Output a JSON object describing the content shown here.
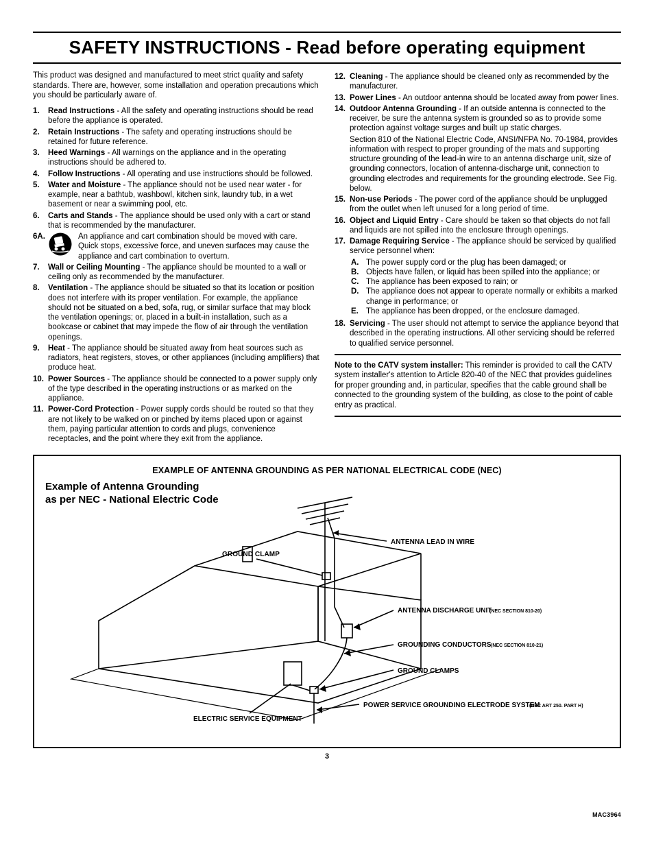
{
  "title": "SAFETY INSTRUCTIONS - Read before operating equipment",
  "intro": "This product was designed and manufactured to meet strict quality and safety standards. There are, however, some installation and operation precautions which you should be particularly aware of.",
  "left_items": [
    {
      "n": "1.",
      "label": "Read Instructions",
      "text": " - All the safety and operating instructions should be read before the appliance is operated."
    },
    {
      "n": "2.",
      "label": "Retain Instructions",
      "text": " - The safety and operating instructions should be retained for future reference."
    },
    {
      "n": "3.",
      "label": "Heed Warnings",
      "text": " - All warnings on the appliance and in the operating instructions should be adhered to."
    },
    {
      "n": "4.",
      "label": "Follow Instructions",
      "text": " - All operating and use instructions should be followed."
    },
    {
      "n": "5.",
      "label": "Water and Moisture",
      "text": " - The appliance should not be used near water - for example, near a bathtub, washbowl, kitchen sink, laundry tub, in a wet basement or near a swimming pool, etc."
    },
    {
      "n": "6.",
      "label": "Carts and Stands",
      "text": " - The appliance should be used only with a cart or stand that is recommended by the manufacturer."
    }
  ],
  "item_6a": {
    "n": "6A.",
    "text": "An appliance and cart combination should be moved with care. Quick stops, excessive force, and uneven surfaces may cause the appliance and cart combination to overturn."
  },
  "left_items_b": [
    {
      "n": "7.",
      "label": "Wall or Ceiling Mounting",
      "text": " - The appliance should be mounted to a wall or ceiling only as recommended by the manufacturer."
    },
    {
      "n": "8.",
      "label": "Ventilation",
      "text": " - The appliance should be situated so that its location or position does not interfere with its proper ventilation. For example, the appliance should not be situated on a bed, sofa, rug, or similar surface that may block the ventilation openings; or, placed in a built-in installation, such as a bookcase or cabinet that may impede the flow of air through the ventilation openings."
    },
    {
      "n": "9.",
      "label": "Heat",
      "text": " - The appliance should be situated away from heat sources such as radiators, heat registers, stoves, or other appliances (including amplifiers) that produce heat."
    },
    {
      "n": "10.",
      "label": "Power Sources",
      "text": " - The appliance should be connected to a power supply only of the type described in the operating instructions or as marked on the appliance."
    },
    {
      "n": "11.",
      "label": "Power-Cord Protection",
      "text": " - Power supply cords should be routed so that they are not likely to be walked on or pinched by items placed upon or against them, paying particular attention to cords and plugs, convenience receptacles, and the point where they exit from the appliance."
    }
  ],
  "right_items_a": [
    {
      "n": "12.",
      "label": "Cleaning",
      "text": " - The appliance should be cleaned only as recommended by the manufacturer."
    },
    {
      "n": "13.",
      "label": "Power Lines",
      "text": " - An outdoor antenna should be located away from power lines."
    }
  ],
  "item_14": {
    "n": "14.",
    "label": "Outdoor Antenna Grounding",
    "text1": " - If an outside antenna is connected to the receiver, be sure the antenna system is grounded so as to provide some protection against voltage surges and built up static charges.",
    "text2": "Section 810 of the National Electric Code, ANSI/NFPA No. 70-1984, provides information with respect to proper grounding of the mats and supporting structure grounding of the lead-in wire to an antenna discharge unit, size of grounding connectors, location of antenna-discharge unit, connection to grounding electrodes and requirements for the grounding electrode. See Fig. below."
  },
  "right_items_b": [
    {
      "n": "15.",
      "label": "Non-use Periods",
      "text": " - The power cord of the appliance should be unplugged from the outlet when left unused for a long period of time."
    },
    {
      "n": "16.",
      "label": "Object and Liquid Entry",
      "text": " - Care should be taken so that objects do not fall and liquids are not spilled into the enclosure through openings."
    }
  ],
  "item_17": {
    "n": "17.",
    "label": "Damage Requiring Service",
    "text": " - The appliance should be serviced by qualified service personnel when:",
    "subs": [
      {
        "n": "A.",
        "t": "The power supply cord or the plug has been damaged; or"
      },
      {
        "n": "B.",
        "t": "Objects have fallen, or liquid has been spilled into the appliance; or"
      },
      {
        "n": "C.",
        "t": "The appliance has been exposed to rain; or"
      },
      {
        "n": "D.",
        "t": "The appliance does not appear to operate normally or exhibits a marked change in performance; or"
      },
      {
        "n": "E.",
        "t": "The appliance has been dropped, or the enclosure damaged."
      }
    ]
  },
  "item_18": {
    "n": "18.",
    "label": "Servicing",
    "text": " - The user should not attempt to service the appliance beyond that described in the operating instructions. All other servicing should be referred to qualified service personnel."
  },
  "note": {
    "label": "Note to the CATV system installer:",
    "text": " This reminder is provided to call the CATV system installer's attention to Article 820-40 of the NEC that provides guidelines for proper grounding and, in particular, specifies that the cable ground shall be connected to the grounding system of the building, as close to the point of cable entry as practical."
  },
  "diagram": {
    "top_title": "EXAMPLE OF ANTENNA GROUNDING AS PER NATIONAL ELECTRICAL CODE (NEC)",
    "left_title_l1": "Example of Antenna Grounding",
    "left_title_l2": "as per NEC - National Electric Code",
    "labels": {
      "ground_clamp_top": "GROUND CLAMP",
      "antenna_lead": "ANTENNA LEAD IN WIRE",
      "discharge": "ANTENNA DISCHARGE UNIT",
      "discharge_sec": "(NEC SECTION 810-20)",
      "conductors": "GROUNDING CONDUCTORS",
      "conductors_sec": "(NEC SECTION 810-21)",
      "ground_clamps": "GROUND CLAMPS",
      "electrode": "POWER SERVICE GROUNDING ELECTRODE SYSTEM",
      "electrode_sec": "(NEC ART 250. PART H)",
      "service_equip": "ELECTRIC SERVICE EQUIPMENT"
    }
  },
  "mac": "MAC3964",
  "page_number": "3"
}
